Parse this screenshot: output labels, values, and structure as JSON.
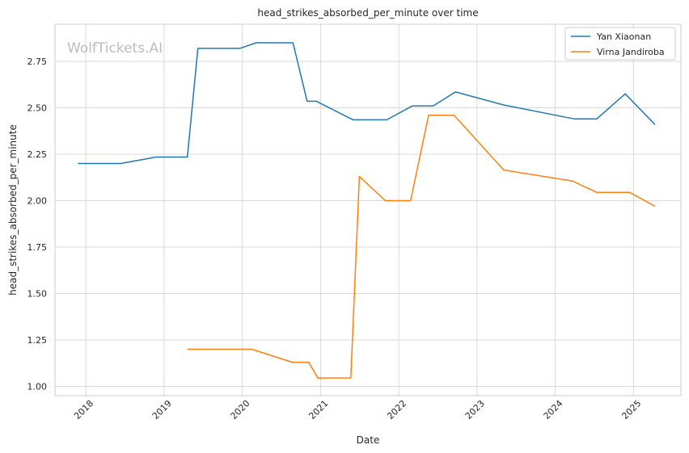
{
  "chart_data": {
    "type": "line",
    "title": "head_strikes_absorbed_per_minute over time",
    "xlabel": "Date",
    "ylabel": "head_strikes_absorbed_per_minute",
    "watermark": "WolfTickets.AI",
    "xlim": [
      "2017-08-10",
      "2025-08-10"
    ],
    "ylim": [
      0.95,
      2.95
    ],
    "x_ticks": [
      "2018",
      "2019",
      "2020",
      "2021",
      "2022",
      "2023",
      "2024",
      "2025"
    ],
    "y_ticks": [
      "1.00",
      "1.25",
      "1.50",
      "1.75",
      "2.00",
      "2.25",
      "2.50",
      "2.75"
    ],
    "grid": true,
    "legend_position": "top-right",
    "colors": {
      "Yan Xiaonan": "#1f77b4",
      "Virna Jandiroba": "#ff7f0e",
      "grid": "#d9d9d9",
      "axes": "#cccccc"
    },
    "series": [
      {
        "name": "Yan Xiaonan",
        "points": [
          [
            "2017-11-25",
            2.2
          ],
          [
            "2018-06-12",
            2.2
          ],
          [
            "2018-11-25",
            2.235
          ],
          [
            "2019-04-20",
            2.235
          ],
          [
            "2019-06-08",
            2.82
          ],
          [
            "2019-12-21",
            2.82
          ],
          [
            "2020-03-06",
            2.85
          ],
          [
            "2020-08-25",
            2.85
          ],
          [
            "2020-10-30",
            2.535
          ],
          [
            "2020-12-12",
            2.535
          ],
          [
            "2021-06-02",
            2.435
          ],
          [
            "2021-11-06",
            2.435
          ],
          [
            "2022-03-05",
            2.51
          ],
          [
            "2022-06-10",
            2.51
          ],
          [
            "2022-09-23",
            2.585
          ],
          [
            "2023-05-06",
            2.515
          ],
          [
            "2024-03-31",
            2.44
          ],
          [
            "2024-07-13",
            2.44
          ],
          [
            "2024-11-23",
            2.575
          ],
          [
            "2025-04-11",
            2.41
          ]
        ]
      },
      {
        "name": "Virna Jandiroba",
        "points": [
          [
            "2019-04-20",
            1.2
          ],
          [
            "2020-02-15",
            1.2
          ],
          [
            "2020-08-22",
            1.13
          ],
          [
            "2020-11-07",
            1.13
          ],
          [
            "2020-12-19",
            1.045
          ],
          [
            "2021-05-22",
            1.045
          ],
          [
            "2021-07-01",
            2.13
          ],
          [
            "2021-10-30",
            2.0
          ],
          [
            "2022-02-25",
            2.0
          ],
          [
            "2022-05-20",
            2.46
          ],
          [
            "2022-09-16",
            2.46
          ],
          [
            "2023-05-06",
            2.165
          ],
          [
            "2024-03-23",
            2.105
          ],
          [
            "2024-07-13",
            2.045
          ],
          [
            "2024-12-14",
            2.045
          ],
          [
            "2025-04-11",
            1.97
          ]
        ]
      }
    ]
  }
}
